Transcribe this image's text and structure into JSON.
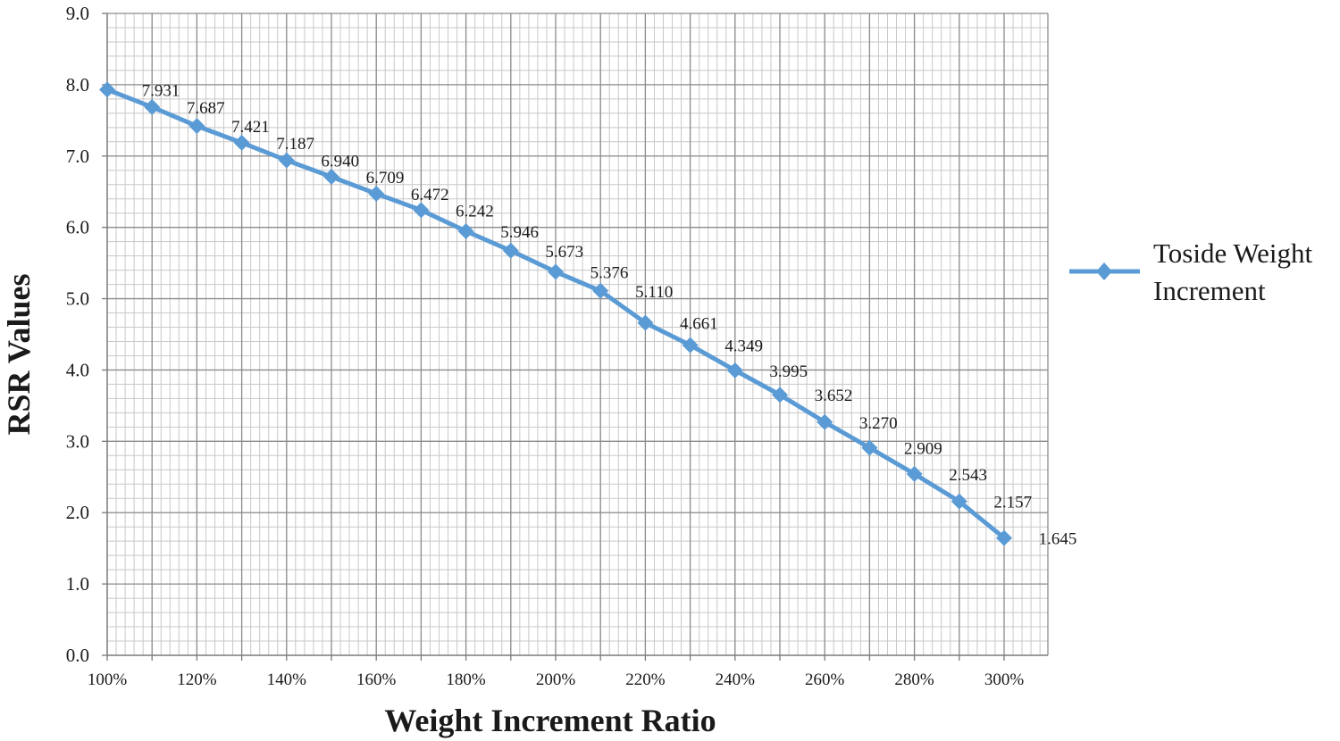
{
  "chart_data": {
    "type": "line",
    "xlabel": "Weight Increment Ratio",
    "ylabel": "RSR Values",
    "x": [
      "100%",
      "110%",
      "120%",
      "130%",
      "140%",
      "150%",
      "160%",
      "170%",
      "180%",
      "190%",
      "200%",
      "210%",
      "220%",
      "230%",
      "240%",
      "250%",
      "260%",
      "270%",
      "280%",
      "290%",
      "300%"
    ],
    "x_tick_labels": [
      "100%",
      "120%",
      "140%",
      "160%",
      "180%",
      "200%",
      "220%",
      "240%",
      "260%",
      "280%",
      "300%"
    ],
    "y_tick_labels": [
      "0.0",
      "1.0",
      "2.0",
      "3.0",
      "4.0",
      "5.0",
      "6.0",
      "7.0",
      "8.0",
      "9.0"
    ],
    "ylim": [
      0,
      9
    ],
    "grid": true,
    "legend_position": "right",
    "series": [
      {
        "name": "Toside Weight Increment",
        "color": "#5b9bd5",
        "marker": "diamond",
        "values": [
          7.931,
          7.687,
          7.421,
          7.187,
          6.94,
          6.709,
          6.472,
          6.242,
          5.946,
          5.673,
          5.376,
          5.11,
          4.661,
          4.349,
          3.995,
          3.652,
          3.27,
          2.909,
          2.543,
          2.157,
          1.645
        ],
        "value_labels": [
          "7.931",
          "7.687",
          "7.421",
          "7.187",
          "6.940",
          "6.709",
          "6.472",
          "6.242",
          "5.946",
          "5.673",
          "5.376",
          "5.110",
          "4.661",
          "4.349",
          "3.995",
          "3.652",
          "3.270",
          "2.909",
          "2.543",
          "2.157",
          "1.645"
        ]
      }
    ],
    "legend": {
      "lines": [
        "Toside Weight",
        "Increment"
      ]
    }
  }
}
